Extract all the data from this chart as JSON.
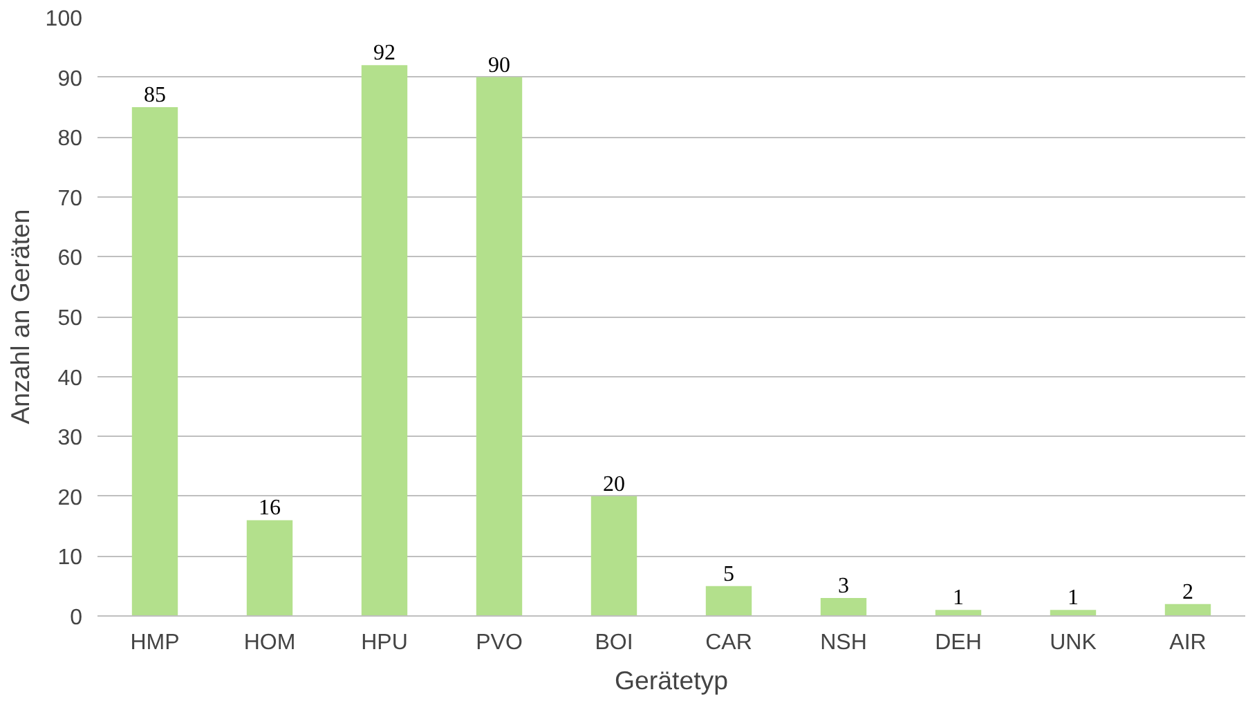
{
  "chart_data": {
    "type": "bar",
    "xlabel": "Gerätetyp",
    "ylabel": "Anzahl an Geräten",
    "categories": [
      "HMP",
      "HOM",
      "HPU",
      "PVO",
      "BOI",
      "CAR",
      "NSH",
      "DEH",
      "UNK",
      "AIR"
    ],
    "values": [
      85,
      16,
      92,
      90,
      20,
      5,
      3,
      1,
      1,
      2
    ],
    "color": "#b3e08c",
    "ylim": [
      0,
      100
    ],
    "yticks": [
      0,
      10,
      20,
      30,
      40,
      50,
      60,
      70,
      80,
      90,
      100
    ],
    "grid": "y",
    "data_labels": true
  }
}
